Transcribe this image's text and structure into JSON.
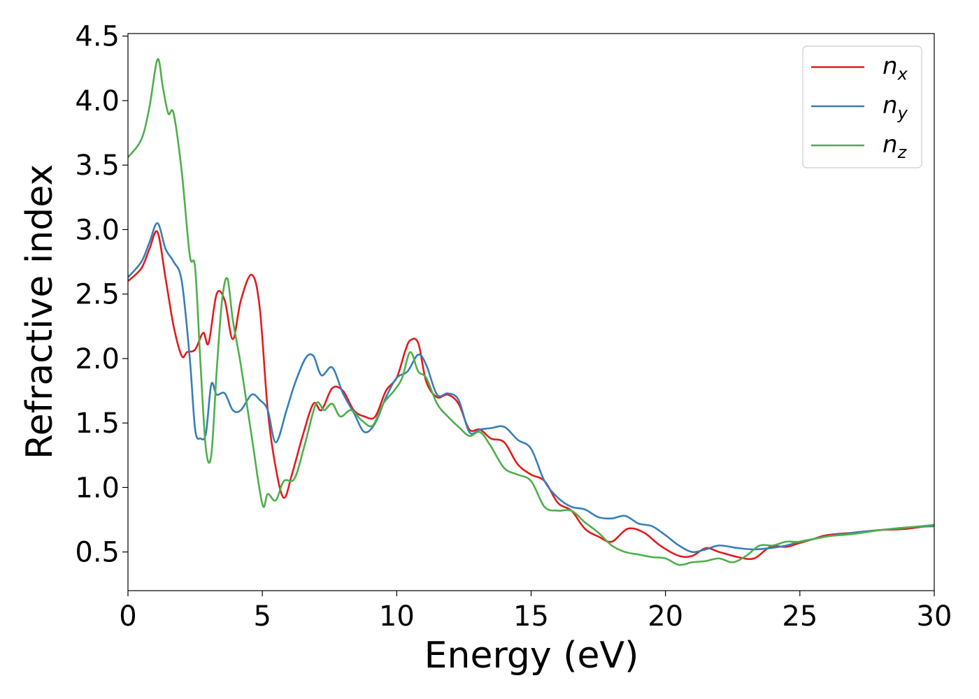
{
  "chart_data": {
    "type": "line",
    "xlabel": "Energy (eV)",
    "ylabel": "Refractive index",
    "xlim": [
      0,
      30
    ],
    "ylim": [
      0.2,
      4.52
    ],
    "xticks": [
      "0",
      "5",
      "10",
      "15",
      "20",
      "25",
      "30"
    ],
    "yticks": [
      "0.5",
      "1.0",
      "1.5",
      "2.0",
      "2.5",
      "3.0",
      "3.5",
      "4.0",
      "4.5"
    ],
    "grid": false,
    "legend_position": "top-right",
    "series": [
      {
        "name": "n_x",
        "label_main": "n",
        "label_sub": "x",
        "color": "#e41a1c",
        "x": [
          0,
          0.5,
          0.8,
          1.1,
          1.4,
          1.7,
          2.0,
          2.2,
          2.5,
          2.8,
          3.0,
          3.3,
          3.6,
          3.9,
          4.2,
          4.6,
          4.9,
          5.2,
          5.5,
          5.8,
          6.1,
          6.5,
          6.9,
          7.2,
          7.6,
          8.0,
          8.4,
          8.8,
          9.2,
          9.6,
          10.0,
          10.3,
          10.5,
          10.8,
          11.1,
          11.5,
          11.9,
          12.3,
          12.7,
          13.1,
          13.5,
          14.0,
          14.5,
          15.0,
          15.5,
          16.0,
          16.5,
          17.0,
          17.5,
          18.0,
          18.6,
          19.2,
          19.8,
          20.5,
          21.0,
          21.5,
          22.0,
          22.7,
          23.3,
          23.9,
          24.5,
          25.0,
          25.5,
          26.0,
          27.0,
          28.0,
          29.0,
          30.0
        ],
        "y": [
          2.6,
          2.7,
          2.85,
          2.98,
          2.62,
          2.25,
          2.02,
          2.05,
          2.07,
          2.2,
          2.12,
          2.5,
          2.45,
          2.15,
          2.45,
          2.65,
          2.4,
          1.6,
          1.15,
          0.92,
          1.1,
          1.4,
          1.65,
          1.6,
          1.77,
          1.75,
          1.6,
          1.55,
          1.55,
          1.75,
          1.85,
          2.05,
          2.14,
          2.12,
          1.82,
          1.7,
          1.72,
          1.65,
          1.45,
          1.45,
          1.38,
          1.35,
          1.18,
          1.1,
          1.05,
          0.88,
          0.82,
          0.68,
          0.62,
          0.58,
          0.68,
          0.65,
          0.55,
          0.47,
          0.47,
          0.53,
          0.5,
          0.46,
          0.45,
          0.54,
          0.54,
          0.57,
          0.6,
          0.63,
          0.65,
          0.67,
          0.68,
          0.71
        ]
      },
      {
        "name": "n_y",
        "label_main": "n",
        "label_sub": "y",
        "color": "#377eb8",
        "x": [
          0,
          0.5,
          0.8,
          1.1,
          1.4,
          1.7,
          2.0,
          2.3,
          2.5,
          2.7,
          2.9,
          3.1,
          3.3,
          3.6,
          3.9,
          4.2,
          4.6,
          4.9,
          5.2,
          5.5,
          5.9,
          6.2,
          6.6,
          6.9,
          7.2,
          7.6,
          8.0,
          8.4,
          8.8,
          9.2,
          9.6,
          10.0,
          10.4,
          10.8,
          11.1,
          11.5,
          11.9,
          12.3,
          12.7,
          13.1,
          13.5,
          14.0,
          14.5,
          15.0,
          15.5,
          16.0,
          16.5,
          17.0,
          17.5,
          18.0,
          18.5,
          19.0,
          19.5,
          20.0,
          20.5,
          21.0,
          21.5,
          22.0,
          22.7,
          23.3,
          23.9,
          24.5,
          25.0,
          25.5,
          26.0,
          27.0,
          28.0,
          29.0,
          30.0
        ],
        "y": [
          2.63,
          2.75,
          2.9,
          3.05,
          2.85,
          2.75,
          2.6,
          2.0,
          1.45,
          1.38,
          1.42,
          1.8,
          1.72,
          1.73,
          1.6,
          1.6,
          1.72,
          1.68,
          1.6,
          1.35,
          1.6,
          1.8,
          2.0,
          2.02,
          1.87,
          1.93,
          1.73,
          1.58,
          1.43,
          1.5,
          1.7,
          1.85,
          1.9,
          2.03,
          1.95,
          1.72,
          1.73,
          1.68,
          1.43,
          1.45,
          1.46,
          1.47,
          1.37,
          1.3,
          1.05,
          0.92,
          0.85,
          0.83,
          0.77,
          0.76,
          0.78,
          0.72,
          0.7,
          0.63,
          0.55,
          0.5,
          0.52,
          0.55,
          0.53,
          0.52,
          0.53,
          0.55,
          0.58,
          0.6,
          0.62,
          0.65,
          0.67,
          0.69,
          0.7
        ]
      },
      {
        "name": "n_z",
        "label_main": "n",
        "label_sub": "z",
        "color": "#4daf4a",
        "x": [
          0,
          0.5,
          0.8,
          1.1,
          1.3,
          1.5,
          1.7,
          2.0,
          2.3,
          2.5,
          2.7,
          2.9,
          3.1,
          3.3,
          3.5,
          3.7,
          3.9,
          4.2,
          4.6,
          5.0,
          5.2,
          5.5,
          5.8,
          6.2,
          6.6,
          7.0,
          7.3,
          7.6,
          7.9,
          8.3,
          8.7,
          9.1,
          9.5,
          9.9,
          10.2,
          10.5,
          10.8,
          11.1,
          11.5,
          11.9,
          12.3,
          12.7,
          13.1,
          13.5,
          14.0,
          14.5,
          15.0,
          15.5,
          16.0,
          16.5,
          17.0,
          17.5,
          18.0,
          18.5,
          19.0,
          19.5,
          20.0,
          20.5,
          21.0,
          21.5,
          22.0,
          22.5,
          23.0,
          23.5,
          24.0,
          24.5,
          25.0,
          26.0,
          27.0,
          28.0,
          29.0,
          30.0
        ],
        "y": [
          3.56,
          3.7,
          3.95,
          4.32,
          4.1,
          3.9,
          3.9,
          3.45,
          2.8,
          2.7,
          1.95,
          1.3,
          1.25,
          1.9,
          2.45,
          2.62,
          2.3,
          1.95,
          1.4,
          0.87,
          0.95,
          0.9,
          1.05,
          1.07,
          1.35,
          1.65,
          1.6,
          1.65,
          1.55,
          1.6,
          1.52,
          1.48,
          1.65,
          1.75,
          1.85,
          2.05,
          1.9,
          1.85,
          1.65,
          1.55,
          1.47,
          1.4,
          1.43,
          1.32,
          1.15,
          1.1,
          1.05,
          0.85,
          0.82,
          0.82,
          0.73,
          0.65,
          0.55,
          0.5,
          0.48,
          0.46,
          0.45,
          0.4,
          0.42,
          0.43,
          0.45,
          0.42,
          0.47,
          0.55,
          0.55,
          0.58,
          0.58,
          0.62,
          0.64,
          0.67,
          0.69,
          0.71
        ]
      }
    ]
  }
}
